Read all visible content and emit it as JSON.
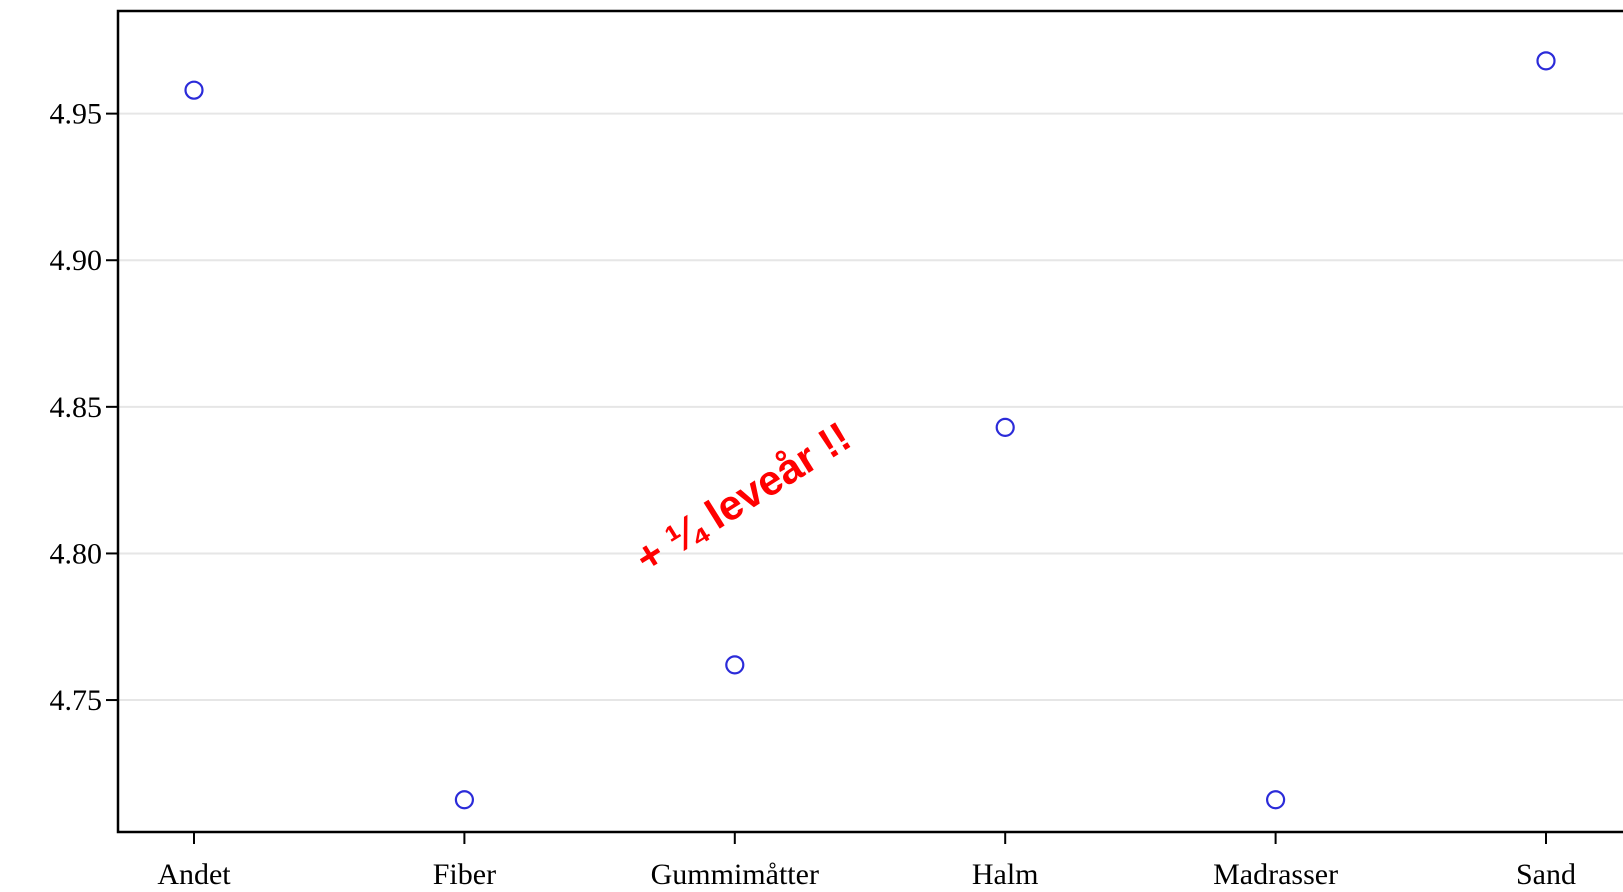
{
  "chart_data": {
    "type": "scatter",
    "categories": [
      "Andet",
      "Fiber",
      "Gummimåtter",
      "Halm",
      "Madrasser",
      "Sand"
    ],
    "values": [
      4.958,
      4.716,
      4.762,
      4.843,
      4.716,
      4.968
    ],
    "title": "",
    "xlabel": "",
    "ylabel": "",
    "ylim": [
      4.705,
      4.985
    ],
    "yticks": [
      "4.75",
      "4.80",
      "4.85",
      "4.90",
      "4.95"
    ],
    "grid": "horizontal",
    "marker": "open-circle",
    "marker_color": "#2b2bd9",
    "annotation": {
      "text": "+ ¼ leveår !!",
      "color": "#ff0000"
    }
  }
}
